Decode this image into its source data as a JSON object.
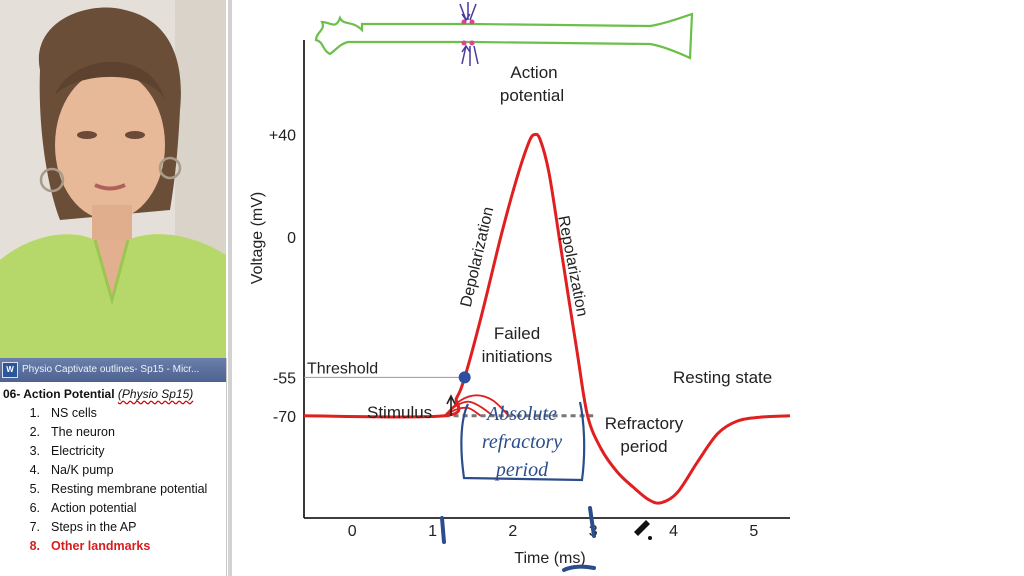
{
  "word": {
    "title": "Physio Captivate outlines- Sp15 - Micr...",
    "heading_prefix": "06- Action Potential ",
    "heading_italic": "(Physio Sp15)",
    "items": [
      {
        "num": "1.",
        "label": "NS cells"
      },
      {
        "num": "2.",
        "label": "The neuron"
      },
      {
        "num": "3.",
        "label": "Electricity"
      },
      {
        "num": "4.",
        "label": "Na/K pump"
      },
      {
        "num": "5.",
        "label": "Resting membrane potential"
      },
      {
        "num": "6.",
        "label": "Action potential"
      },
      {
        "num": "7.",
        "label": "Steps in the AP"
      },
      {
        "num": "8.",
        "label": "Other landmarks",
        "active": true
      }
    ]
  },
  "chart_data": {
    "type": "line",
    "xlabel": "Time (ms)",
    "ylabel": "Voltage (mV)",
    "xlim": [
      -0.6,
      5.45
    ],
    "ylim": [
      -110,
      77
    ],
    "x_ticks": [
      0,
      1,
      2,
      3,
      4,
      5
    ],
    "y_ticks": [
      {
        "value": 40,
        "label": "+40"
      },
      {
        "value": 0,
        "label": "0"
      },
      {
        "value": -55,
        "label": "-55"
      },
      {
        "value": -70,
        "label": "-70"
      }
    ],
    "grid": false,
    "series": [
      {
        "color": "#e02020",
        "x": [
          -0.6,
          1.15,
          1.3,
          1.4,
          1.6,
          1.85,
          2.05,
          2.2,
          2.27,
          2.34,
          2.45,
          2.6,
          2.8,
          2.93,
          3.1,
          3.3,
          3.5,
          3.7,
          3.85,
          4.05,
          4.3,
          4.55,
          4.8,
          5.1,
          5.45
        ],
        "y": [
          -70,
          -70,
          -63,
          -55,
          -32,
          0,
          23,
          37,
          40,
          38,
          25,
          -5,
          -45,
          -70,
          -83,
          -92,
          -98,
          -103,
          -104,
          -100,
          -88,
          -77,
          -72,
          -70.5,
          -70
        ]
      }
    ],
    "failed_initiations": [
      {
        "x": [
          1.15,
          1.3,
          1.45,
          1.6,
          1.75
        ],
        "y": [
          -70,
          -66,
          -64.5,
          -66.5,
          -70
        ]
      },
      {
        "x": [
          1.15,
          1.35,
          1.55,
          1.75,
          1.95
        ],
        "y": [
          -70,
          -64,
          -62,
          -64,
          -70
        ]
      },
      {
        "x": [
          1.15,
          1.3,
          1.45,
          1.6
        ],
        "y": [
          -70,
          -67.5,
          -67,
          -70
        ]
      }
    ],
    "threshold": {
      "x": 1.4,
      "y": -55,
      "label": "Threshold"
    },
    "resting_dashed_range": [
      1.15,
      3.0
    ],
    "annotations": {
      "action_potential_line1": "Action",
      "action_potential_line2": "potential",
      "depolarization": "Depolarization",
      "repolarization": "Repolarization",
      "failed_line1": "Failed",
      "failed_line2": "initiations",
      "resting_state": "Resting state",
      "stimulus": "Stimulus",
      "refractory_line1": "Refractory",
      "refractory_line2": "period",
      "abs_line1": "Absolute",
      "abs_line2": "refractory",
      "abs_line3": "period"
    },
    "colors": {
      "curve": "#e02020",
      "axon": "#6cc04a",
      "ink": "#2b4d8c",
      "dot": "#2e4fa0",
      "dashed": "#777777"
    }
  }
}
